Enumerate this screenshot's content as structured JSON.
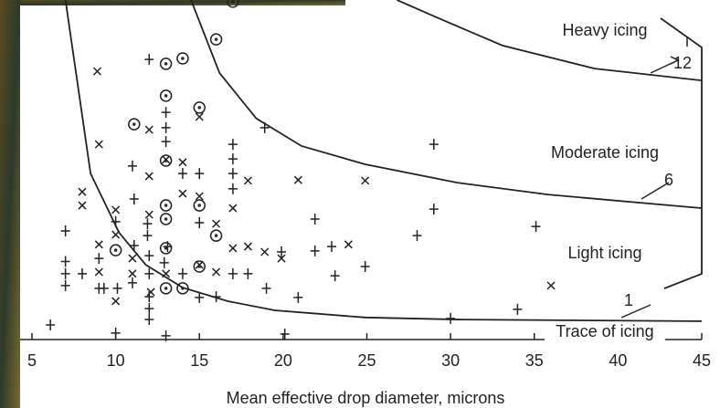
{
  "chart_data": {
    "type": "scatter",
    "xlabel": "Mean effective drop diameter, microns",
    "xlim": [
      5,
      45
    ],
    "xticks": [
      5,
      10,
      15,
      20,
      25,
      30,
      35,
      40,
      45
    ],
    "ylim": [
      0,
      100
    ],
    "color": "#222222",
    "series": [
      {
        "marker": "plus",
        "x": [
          6.1,
          7.0,
          7.0,
          7.0,
          7.0,
          8.0,
          9.0,
          9.0,
          9.3,
          10.0,
          10.1,
          10.0,
          11.0,
          11.1,
          11.1,
          11.0,
          12.0,
          11.9,
          11.9,
          12.0,
          12.0,
          12.0,
          12.0,
          12.0,
          13.0,
          13.0,
          13.0,
          13.1,
          12.9,
          13.0,
          14.0,
          14.0,
          15.0,
          15.0,
          15.0,
          16.0,
          17.0,
          17.0,
          17.0,
          17.0,
          17.0,
          17.9,
          18.9,
          19.0,
          19.9,
          20.1,
          20.9,
          21.9,
          21.9,
          22.9,
          23.1,
          24.9,
          28.0,
          29.0,
          29.0,
          30.0,
          34.0,
          35.1
        ],
        "values": [
          4.3,
          32,
          23,
          19.4,
          15.9,
          19.4,
          15.1,
          23.9,
          15.1,
          34.7,
          15.1,
          1.9,
          51.1,
          41.4,
          27.7,
          16.7,
          82.5,
          34.1,
          30.6,
          24.7,
          19.4,
          12.6,
          9.1,
          5.9,
          66.9,
          62.4,
          58.3,
          27.4,
          22.6,
          1.1,
          48.9,
          19.4,
          48.9,
          34.4,
          12.4,
          12.6,
          57.5,
          53.2,
          48.9,
          44.4,
          19.4,
          19.4,
          62.4,
          15.1,
          25.8,
          1.6,
          12.4,
          35.5,
          26.1,
          27.4,
          18.8,
          21.5,
          30.6,
          57.5,
          38.4,
          6.2,
          8.9,
          33.3
        ]
      },
      {
        "marker": "cross",
        "x": [
          8.9,
          8.0,
          8.0,
          9.0,
          9.0,
          9.0,
          10.0,
          10.0,
          10.0,
          11.0,
          11.0,
          12.0,
          12.0,
          12.0,
          12.1,
          13.0,
          13.0,
          14.0,
          14.0,
          15.0,
          15.0,
          15.0,
          16.0,
          16.0,
          17.0,
          17.0,
          17.9,
          17.9,
          18.9,
          19.9,
          20.9,
          23.9,
          24.9,
          36.0
        ],
        "values": [
          79.0,
          43.5,
          39.5,
          57.5,
          28.0,
          19.9,
          38.2,
          30.9,
          11.3,
          23.9,
          19.4,
          61.8,
          48.1,
          36.8,
          14.0,
          53.0,
          19.4,
          52.2,
          43.0,
          65.6,
          42.2,
          22.0,
          19.9,
          34.1,
          38.7,
          26.9,
          46.8,
          27.4,
          25.8,
          23.9,
          47.0,
          28.0,
          46.8,
          15.9
        ]
      },
      {
        "marker": "circle",
        "x": [
          13.0,
          14.0,
          11.1,
          13.0,
          15.0,
          13.0,
          13.0,
          13.0,
          13.0,
          10.0,
          15.0,
          16.0,
          15.0,
          14.0,
          13.0,
          16.0,
          17.0
        ],
        "values": [
          81.2,
          82.8,
          63.4,
          71.8,
          68.3,
          52.7,
          39.5,
          35.5,
          26.9,
          26.3,
          39.5,
          30.6,
          21.5,
          15.1,
          15.1,
          88.4,
          99.5
        ]
      }
    ],
    "curves": [
      {
        "label": "1",
        "x": [
          7.0,
          8.5,
          10.2,
          11.8,
          14.0,
          16.7,
          19.5,
          24.9,
          30.4,
          45
        ],
        "values": [
          100,
          48.9,
          31.5,
          22,
          15.3,
          11.3,
          8.6,
          6.5,
          5.9,
          5.4
        ]
      },
      {
        "label": "6",
        "x": [
          14.5,
          16.2,
          18.4,
          21.1,
          24.9,
          30.4,
          35.8,
          45
        ],
        "values": [
          100,
          78.5,
          65.1,
          57,
          51.6,
          46.2,
          42.7,
          38.7
        ]
      },
      {
        "label": "12",
        "x": [
          26.8,
          29.3,
          33.1,
          38.6,
          45
        ],
        "values": [
          100,
          94.6,
          86.6,
          79.8,
          76.3
        ]
      }
    ],
    "annotations": [
      "Heavy icing",
      "Moderate icing",
      "Light icing",
      "Trace of icing"
    ]
  }
}
